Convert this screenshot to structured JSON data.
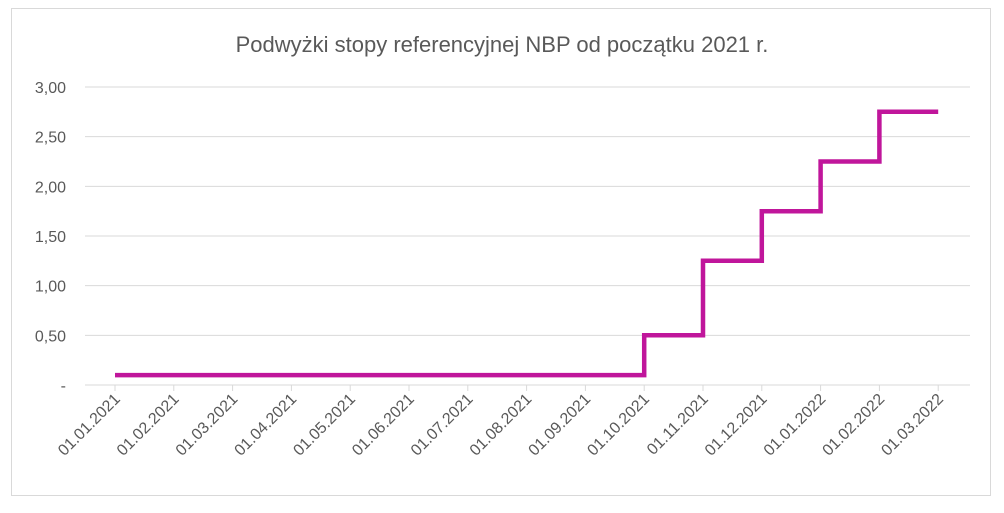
{
  "chart_data": {
    "type": "line",
    "step": true,
    "title": "Podwyżki stopy referencyjnej NBP od początku 2021 r.",
    "xlabel": "",
    "ylabel": "",
    "x_tick_labels": [
      "01.01.2021",
      "01.02.2021",
      "01.03.2021",
      "01.04.2021",
      "01.05.2021",
      "01.06.2021",
      "01.07.2021",
      "01.08.2021",
      "01.09.2021",
      "01.10.2021",
      "01.11.2021",
      "01.12.2021",
      "01.01.2022",
      "01.02.2022",
      "01.03.2022"
    ],
    "y_tick_labels": [
      "-",
      "0,50",
      "1,00",
      "1,50",
      "2,00",
      "2,50",
      "3,00"
    ],
    "y_tick_values": [
      0,
      0.5,
      1.0,
      1.5,
      2.0,
      2.5,
      3.0
    ],
    "ylim": [
      0,
      3.0
    ],
    "grid": true,
    "line_color": "#c0169b",
    "series": [
      {
        "points": [
          {
            "x": "01.01.2021",
            "y": 0.1
          },
          {
            "x": "01.10.2021",
            "y": 0.1
          },
          {
            "x": "01.10.2021",
            "y": 0.5
          },
          {
            "x": "01.11.2021",
            "y": 0.5
          },
          {
            "x": "01.11.2021",
            "y": 1.25
          },
          {
            "x": "01.12.2021",
            "y": 1.25
          },
          {
            "x": "01.12.2021",
            "y": 1.75
          },
          {
            "x": "01.01.2022",
            "y": 1.75
          },
          {
            "x": "01.01.2022",
            "y": 2.25
          },
          {
            "x": "01.02.2022",
            "y": 2.25
          },
          {
            "x": "01.02.2022",
            "y": 2.75
          },
          {
            "x": "01.03.2022",
            "y": 2.75
          }
        ]
      }
    ]
  }
}
